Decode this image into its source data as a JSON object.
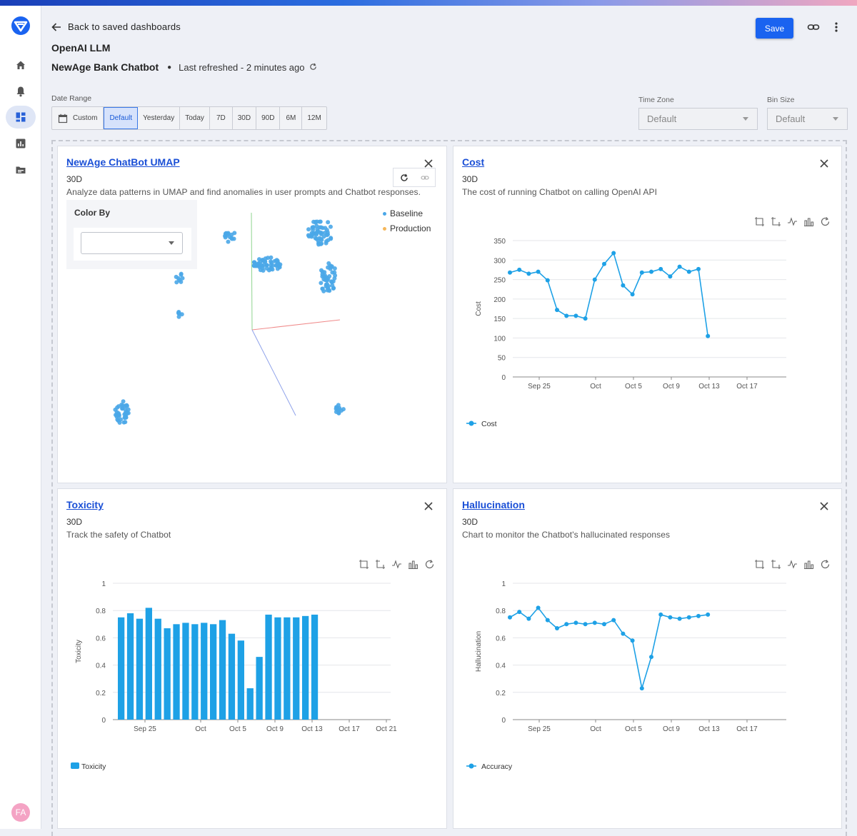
{
  "header": {
    "back_label": "Back to saved dashboards",
    "org_name": "OpenAI LLM",
    "dashboard_name": "NewAge Bank Chatbot",
    "refresh_text": "Last refreshed - 2 minutes ago",
    "save_label": "Save"
  },
  "sidebar": {
    "items": [
      {
        "name": "home-icon"
      },
      {
        "name": "bell-icon"
      },
      {
        "name": "dashboard-icon",
        "active": true
      },
      {
        "name": "bar-chart-icon"
      },
      {
        "name": "folder-icon"
      }
    ],
    "avatar_initials": "FA",
    "avatar_color": "#f4a3c4"
  },
  "filters": {
    "date_range_label": "Date Range",
    "date_range_options": [
      "Custom",
      "Default",
      "Yesterday",
      "Today",
      "7D",
      "30D",
      "90D",
      "6M",
      "12M"
    ],
    "date_range_selected": "Default",
    "time_zone_label": "Time Zone",
    "time_zone_value": "Default",
    "bin_size_label": "Bin Size",
    "bin_size_value": "Default"
  },
  "colors": {
    "accent": "#1a63f0",
    "series": "#1ea1e6",
    "baseline": "#4aa7e8",
    "production": "#f5b75a"
  },
  "cards": {
    "umap": {
      "title": "NewAge ChatBot UMAP",
      "period": "30D",
      "description": "Analyze data patterns in UMAP and find anomalies in user prompts and Chatbot responses.",
      "color_by_label": "Color By",
      "legend": [
        "Baseline",
        "Production"
      ]
    },
    "cost": {
      "title": "Cost",
      "period": "30D",
      "description": "The cost of running Chatbot on calling OpenAI API"
    },
    "toxicity": {
      "title": "Toxicity",
      "period": "30D",
      "description": "Track the safety of Chatbot"
    },
    "hallucination": {
      "title": "Hallucination",
      "period": "30D",
      "description": "Chart to monitor the Chatbot's hallucinated responses"
    }
  },
  "chart_data": [
    {
      "id": "cost",
      "type": "line",
      "ylabel": "Cost",
      "ylim": [
        0,
        350
      ],
      "yticks": [
        0,
        50,
        100,
        150,
        200,
        250,
        300,
        350
      ],
      "x_tick_labels": [
        "Sep 25",
        "Oct",
        "Oct 5",
        "Oct 9",
        "Oct 13",
        "Oct 17"
      ],
      "series": [
        {
          "name": "Cost",
          "values": [
            268,
            275,
            265,
            270,
            248,
            172,
            157,
            157,
            150,
            250,
            290,
            318,
            235,
            212,
            268,
            270,
            277,
            258,
            283,
            270,
            277,
            105
          ]
        }
      ]
    },
    {
      "id": "toxicity",
      "type": "bar",
      "ylabel": "Toxicity",
      "ylim": [
        0,
        1
      ],
      "yticks": [
        0,
        0.2,
        0.4,
        0.6,
        0.8,
        1
      ],
      "x_tick_labels": [
        "Sep 25",
        "Oct",
        "Oct 5",
        "Oct 9",
        "Oct 13",
        "Oct 17",
        "Oct 21"
      ],
      "series": [
        {
          "name": "Toxicity",
          "values": [
            0.75,
            0.78,
            0.74,
            0.82,
            0.74,
            0.67,
            0.7,
            0.71,
            0.7,
            0.71,
            0.7,
            0.73,
            0.63,
            0.58,
            0.23,
            0.46,
            0.77,
            0.75,
            0.75,
            0.75,
            0.76,
            0.77
          ]
        }
      ]
    },
    {
      "id": "hallucination",
      "type": "line",
      "ylabel": "Hallucination",
      "ylim": [
        0,
        1
      ],
      "yticks": [
        0,
        0.2,
        0.4,
        0.6,
        0.8,
        1
      ],
      "x_tick_labels": [
        "Sep 25",
        "Oct",
        "Oct 5",
        "Oct 9",
        "Oct 13",
        "Oct 17"
      ],
      "series": [
        {
          "name": "Accuracy",
          "values": [
            0.75,
            0.79,
            0.74,
            0.82,
            0.73,
            0.67,
            0.7,
            0.71,
            0.7,
            0.71,
            0.7,
            0.73,
            0.63,
            0.58,
            0.23,
            0.46,
            0.77,
            0.75,
            0.74,
            0.75,
            0.76,
            0.77
          ]
        }
      ]
    }
  ]
}
